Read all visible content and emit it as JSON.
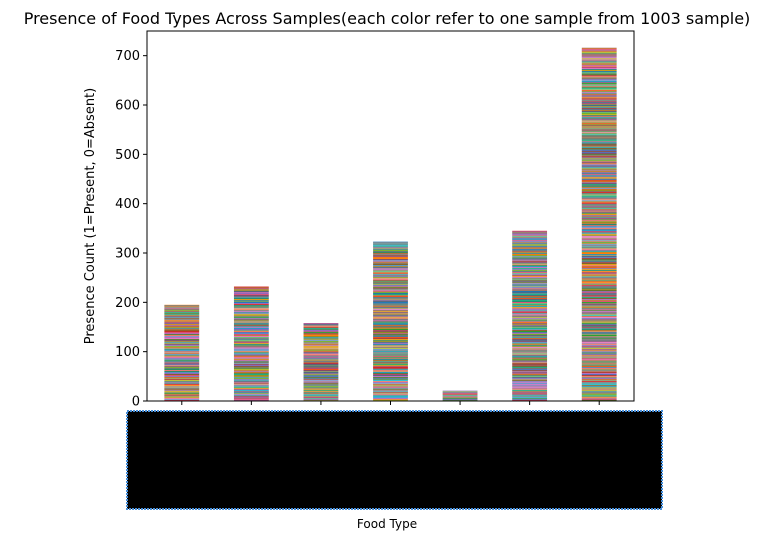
{
  "chart_data": {
    "type": "bar",
    "stacked": true,
    "title": "Presence of Food Types Across Samples(each color refer to one sample from 1003 sample)",
    "xlabel": "Food Type",
    "ylabel": "Presence Count (1=Present, 0=Absent)",
    "ylim": [
      0,
      750
    ],
    "yticks": [
      0,
      100,
      200,
      300,
      400,
      500,
      600,
      700
    ],
    "categories_hidden": true,
    "category_count": 7,
    "values": [
      195,
      232,
      158,
      323,
      21,
      345,
      716
    ],
    "series_count": 1003,
    "series_unit_value": 1,
    "grid": false,
    "legend": "none"
  },
  "palette": [
    "#1f77b4",
    "#ff7f0e",
    "#2ca02c",
    "#d62728",
    "#9467bd",
    "#8c564b",
    "#e377c2",
    "#7f7f7f",
    "#bcbd22",
    "#17becf"
  ],
  "redaction": {
    "fill": "#000000",
    "border": "#4a90d9"
  }
}
